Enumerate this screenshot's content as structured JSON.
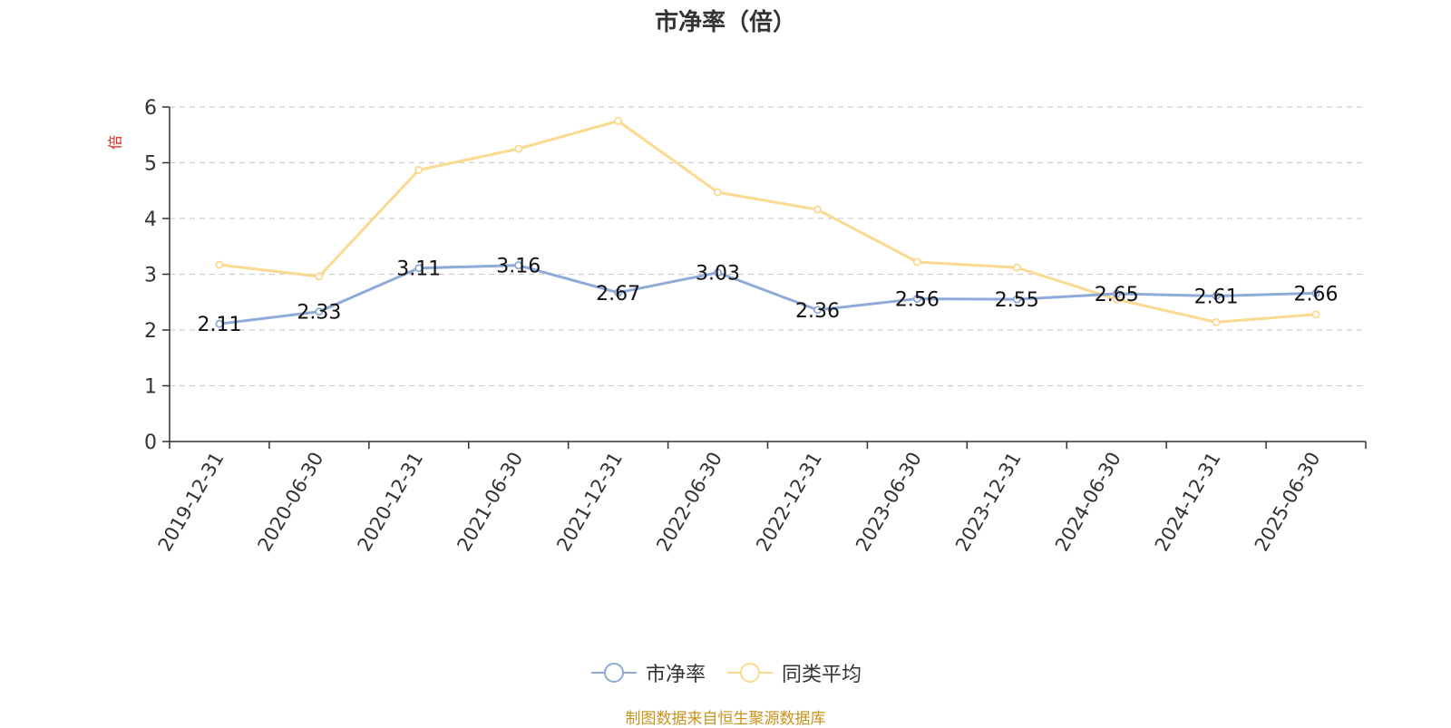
{
  "chart_data": {
    "type": "line",
    "title": "市净率（倍）",
    "ylabel": "倍",
    "ylim": [
      0,
      6
    ],
    "yticks": [
      0,
      1,
      2,
      3,
      4,
      5,
      6
    ],
    "grid": true,
    "legend_position": "bottom",
    "categories": [
      "2019-12-31",
      "2020-06-30",
      "2020-12-31",
      "2021-06-30",
      "2021-12-31",
      "2022-06-30",
      "2022-12-31",
      "2023-06-30",
      "2023-12-31",
      "2024-06-30",
      "2024-12-31",
      "2025-06-30"
    ],
    "series": [
      {
        "name": "市净率",
        "color": "#8eaad8",
        "show_labels": true,
        "values": [
          2.11,
          2.33,
          3.11,
          3.16,
          2.67,
          3.03,
          2.36,
          2.56,
          2.55,
          2.65,
          2.61,
          2.66
        ]
      },
      {
        "name": "同类平均",
        "color": "#fbd990",
        "show_labels": false,
        "values": [
          3.17,
          2.96,
          4.87,
          5.25,
          5.75,
          4.47,
          4.16,
          3.22,
          3.12,
          2.55,
          2.14,
          2.28
        ]
      }
    ],
    "source": "制图数据来自恒生聚源数据库"
  }
}
